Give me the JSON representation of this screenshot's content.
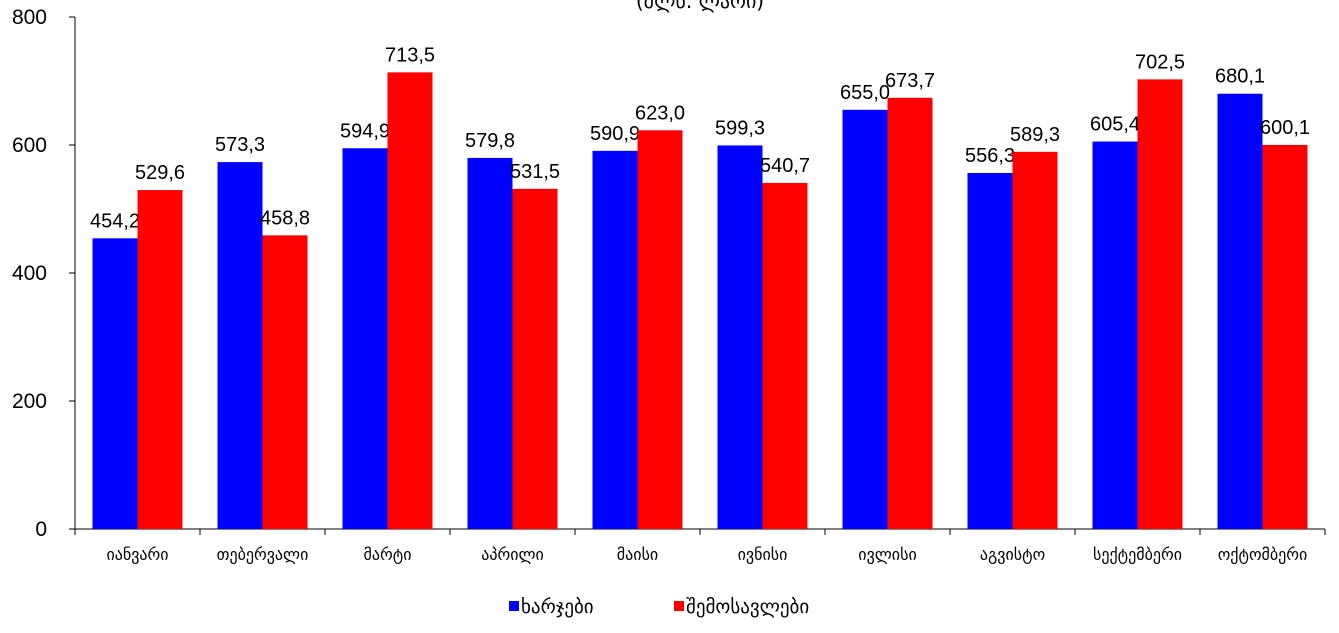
{
  "chart_data": {
    "type": "bar",
    "title": "(მლნ. ლარი)",
    "categories": [
      "იანვარი",
      "თებერვალი",
      "მარტი",
      "აპრილი",
      "მაისი",
      "ივნისი",
      "ივლისი",
      "აგვისტო",
      "სექტემბერი",
      "ოქტომბერი"
    ],
    "series": [
      {
        "name": "ხარჯები",
        "color": "#0000FF",
        "values": [
          454.2,
          573.3,
          594.9,
          579.8,
          590.9,
          599.3,
          655.0,
          556.3,
          605.4,
          680.1
        ],
        "labels": [
          "454,2",
          "573,3",
          "594,9",
          "579,8",
          "590,9",
          "599,3",
          "655,0",
          "556,3",
          "605,4",
          "680,1"
        ]
      },
      {
        "name": "შემოსავლები",
        "color": "#FF0000",
        "values": [
          529.6,
          458.8,
          713.5,
          531.5,
          623.0,
          540.7,
          673.7,
          589.3,
          702.5,
          600.1
        ],
        "labels": [
          "529,6",
          "458,8",
          "713,5",
          "531,5",
          "623,0",
          "540,7",
          "673,7",
          "589,3",
          "702,5",
          "600,1"
        ]
      }
    ],
    "ylim": [
      0,
      800
    ],
    "yticks": [
      "0",
      "200",
      "400",
      "600",
      "800"
    ],
    "grid": false,
    "legend": "bottom"
  }
}
